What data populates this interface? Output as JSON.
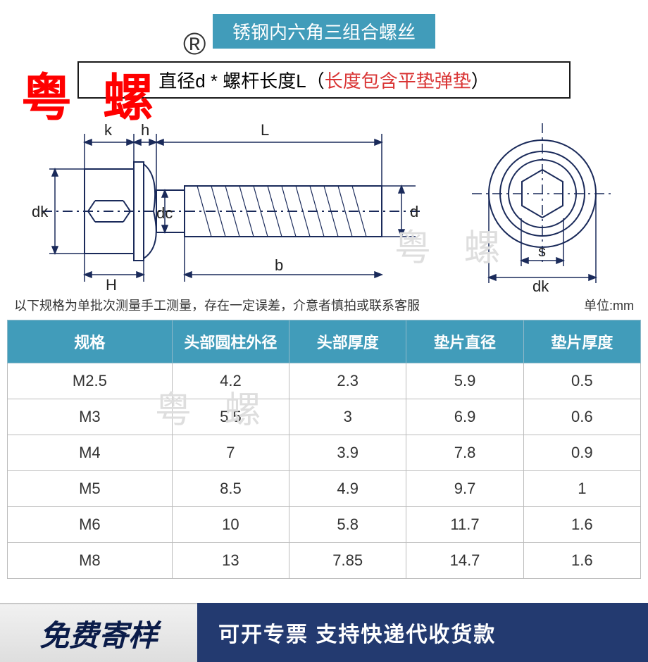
{
  "watermark_main": "粤 螺",
  "watermark_symbol": "®",
  "watermark_gray": "粤 螺",
  "title": "锈钢内六角三组合螺丝",
  "subtitle_black": "直径d * 螺杆长度L（",
  "subtitle_red": "长度包含平垫弹垫",
  "subtitle_black2": "）",
  "note_left": "以下规格为单批次测量手工测量，存在一定误差，介意者慎拍或联系客服",
  "note_right": "单位:mm",
  "diagram_labels": {
    "k": "k",
    "h": "h",
    "L": "L",
    "dk": "dk",
    "H": "H",
    "dc": "dc",
    "b": "b",
    "d": "d",
    "s": "s",
    "dk2": "dk"
  },
  "table": {
    "columns": [
      "规格",
      "头部圆柱外径",
      "头部厚度",
      "垫片直径",
      "垫片厚度"
    ],
    "rows": [
      [
        "M2.5",
        "4.2",
        "2.3",
        "5.9",
        "0.5"
      ],
      [
        "M3",
        "5.5",
        "3",
        "6.9",
        "0.6"
      ],
      [
        "M4",
        "7",
        "3.9",
        "7.8",
        "0.9"
      ],
      [
        "M5",
        "8.5",
        "4.9",
        "9.7",
        "1"
      ],
      [
        "M6",
        "10",
        "5.8",
        "11.7",
        "1.6"
      ],
      [
        "M8",
        "13",
        "7.85",
        "14.7",
        "1.6"
      ]
    ]
  },
  "footer_left": "免费寄样",
  "footer_right": "可开专票 支持快递代收货款",
  "colors": {
    "header_bg": "#419cba",
    "accent_red": "#ff0000",
    "subtitle_red": "#d93434",
    "footer_dark": "#233a70",
    "footer_text": "#0b1c49"
  }
}
